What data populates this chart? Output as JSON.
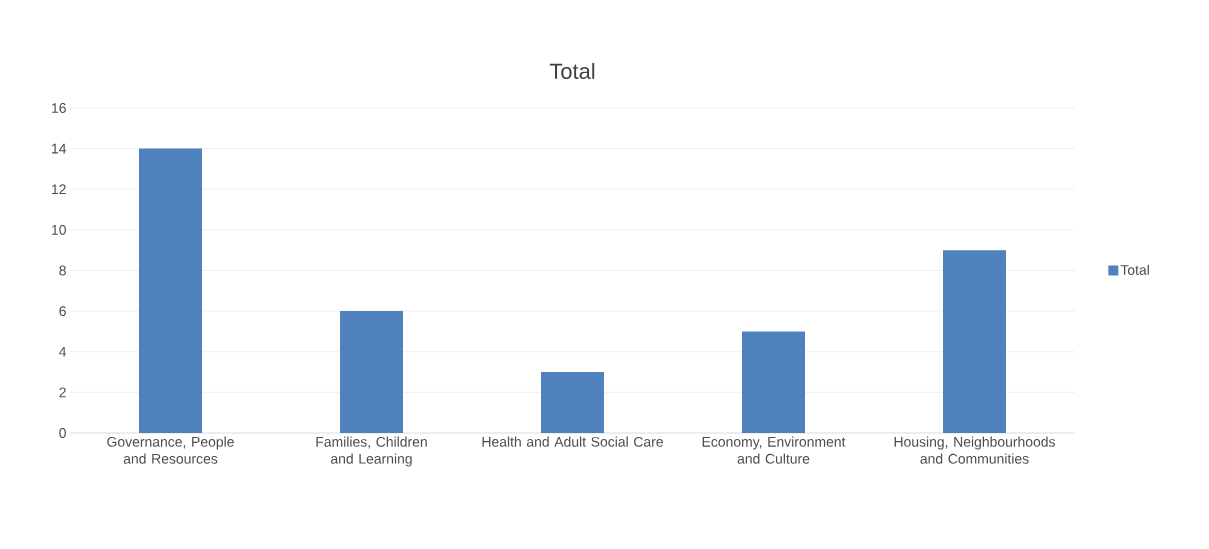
{
  "chart_data": {
    "type": "bar",
    "title": "Total",
    "categories": [
      "Governance, People and Resources",
      "Families, Children and Learning",
      "Health and Adult Social Care",
      "Economy, Environment and Culture",
      "Housing, Neighbourhoods and Communities"
    ],
    "series": [
      {
        "name": "Total",
        "color": "#4f81bd",
        "values": [
          14,
          6,
          3,
          5,
          9
        ]
      }
    ],
    "ylim": [
      0,
      16
    ],
    "yticks": [
      0,
      2,
      4,
      6,
      8,
      10,
      12,
      14,
      16
    ],
    "grid": "y",
    "legend": "right"
  }
}
